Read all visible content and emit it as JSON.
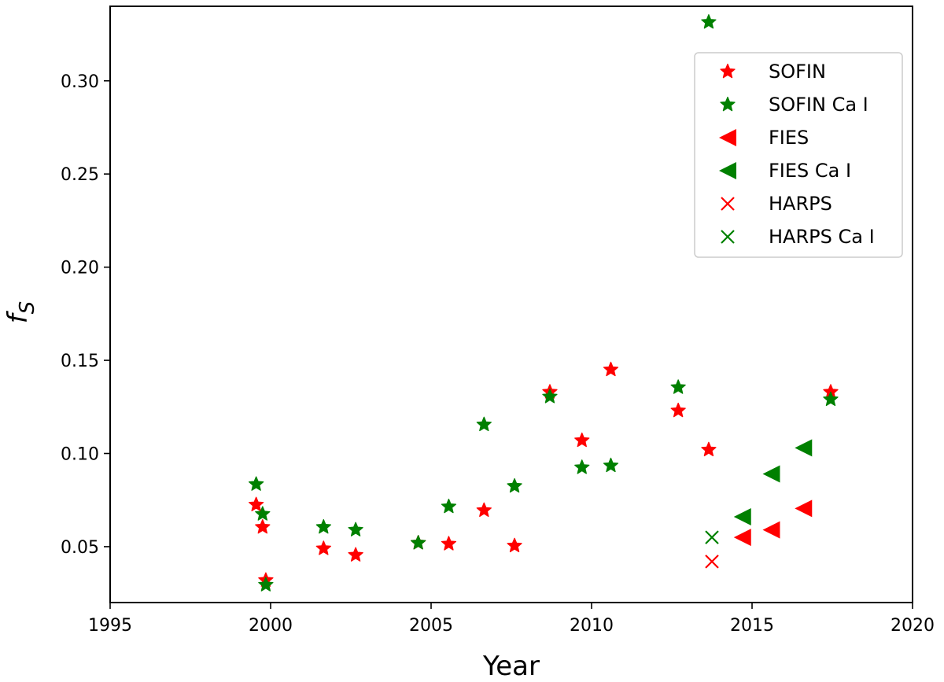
{
  "chart_data": {
    "type": "scatter",
    "title": "",
    "xlabel": "Year",
    "ylabel_main": "f",
    "ylabel_sub": "S",
    "xlim": [
      1995,
      2020
    ],
    "ylim": [
      0.02,
      0.34
    ],
    "xticks": [
      1995,
      2000,
      2005,
      2010,
      2015,
      2020
    ],
    "yticks": [
      0.05,
      0.1,
      0.15,
      0.2,
      0.25,
      0.3
    ],
    "ytick_labels": [
      "0.05",
      "0.10",
      "0.15",
      "0.20",
      "0.25",
      "0.30"
    ],
    "legend_position": "top-right",
    "colors": {
      "red": "#ff0000",
      "green": "#008000"
    },
    "series": [
      {
        "name": "SOFIN",
        "marker": "star",
        "color": "#ff0000",
        "points": [
          [
            1999.55,
            0.0725
          ],
          [
            1999.75,
            0.0605
          ],
          [
            1999.85,
            0.032
          ],
          [
            2001.65,
            0.049
          ],
          [
            2002.65,
            0.0455
          ],
          [
            2004.6,
            0.052
          ],
          [
            2005.55,
            0.0515
          ],
          [
            2006.65,
            0.0695
          ],
          [
            2007.6,
            0.0505
          ],
          [
            2008.7,
            0.133
          ],
          [
            2009.7,
            0.107
          ],
          [
            2010.6,
            0.145
          ],
          [
            2012.7,
            0.123
          ],
          [
            2013.65,
            0.102
          ],
          [
            2017.45,
            0.133
          ]
        ]
      },
      {
        "name": "SOFIN Ca I",
        "marker": "star",
        "color": "#008000",
        "points": [
          [
            1999.55,
            0.0835
          ],
          [
            1999.75,
            0.0675
          ],
          [
            1999.85,
            0.0295
          ],
          [
            2001.65,
            0.0605
          ],
          [
            2002.65,
            0.059
          ],
          [
            2004.6,
            0.052
          ],
          [
            2005.55,
            0.0715
          ],
          [
            2006.65,
            0.1155
          ],
          [
            2007.6,
            0.0825
          ],
          [
            2008.7,
            0.1305
          ],
          [
            2009.7,
            0.0925
          ],
          [
            2010.6,
            0.0935
          ],
          [
            2012.7,
            0.1355
          ],
          [
            2013.65,
            0.3315
          ],
          [
            2017.45,
            0.129
          ]
        ]
      },
      {
        "name": "FIES",
        "marker": "triangle-left",
        "color": "#ff0000",
        "points": [
          [
            2014.7,
            0.055
          ],
          [
            2015.6,
            0.059
          ],
          [
            2016.6,
            0.0705
          ]
        ]
      },
      {
        "name": "FIES Ca I",
        "marker": "triangle-left",
        "color": "#008000",
        "points": [
          [
            2014.7,
            0.066
          ],
          [
            2015.6,
            0.089
          ],
          [
            2016.6,
            0.103
          ]
        ]
      },
      {
        "name": "HARPS",
        "marker": "x",
        "color": "#ff0000",
        "points": [
          [
            2013.75,
            0.042
          ]
        ]
      },
      {
        "name": "HARPS Ca I",
        "marker": "x",
        "color": "#008000",
        "points": [
          [
            2013.75,
            0.055
          ]
        ]
      }
    ]
  }
}
